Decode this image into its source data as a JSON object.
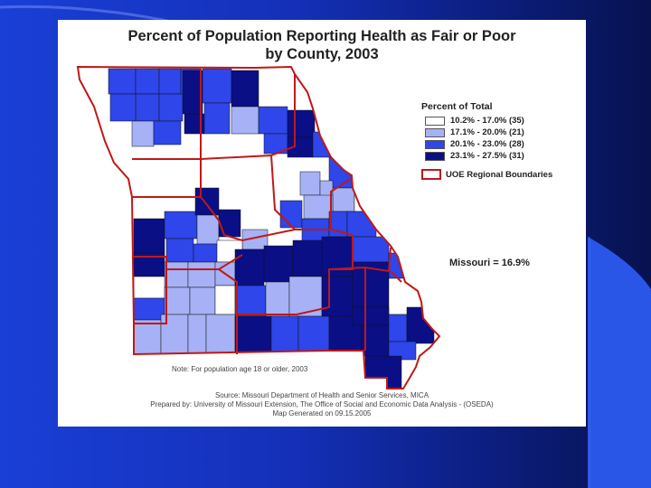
{
  "title": {
    "line1": "Percent of Population Reporting Health as Fair or Poor",
    "line2": "by County, 2003"
  },
  "legend": {
    "title": "Percent of Total",
    "classes": [
      {
        "label": "10.2% - 17.0% (35)",
        "color": "#ffffff"
      },
      {
        "label": "17.1% - 20.0% (21)",
        "color": "#a6b2f5"
      },
      {
        "label": "20.1% - 23.0% (28)",
        "color": "#2e46ea"
      },
      {
        "label": "23.1% - 27.5% (31)",
        "color": "#0a0f86"
      }
    ],
    "region_label": "UOE Regional Boundaries",
    "region_color": "#c01818"
  },
  "state_stat": "Missouri = 16.9%",
  "note": "Note:  For population age 18 or older, 2003",
  "credits": [
    "Source: Missouri Department of Health and Senior Services, MICA",
    "Prepared by: University of Missouri Extension, The Office of Social and Economic Data Analysis - (OSEDA)",
    "Map Generated on 09.15.2005"
  ]
}
